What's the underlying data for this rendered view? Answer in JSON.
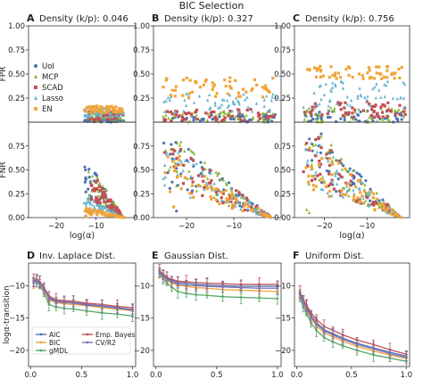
{
  "figure": {
    "title": "BIC Selection",
    "colors": {
      "UoI": "#4c72b0",
      "MCP": "#8bb739",
      "SCAD": "#c44e52",
      "Lasso": "#64b5cd",
      "EN": "#f0a53a",
      "AIC": "#4c72b0",
      "BIC": "#f0a53a",
      "gMDL": "#55a868",
      "Emp. Bayes": "#c44e52",
      "CV/R2": "#8172b2"
    }
  },
  "chart_data": [
    {
      "id": "A-FPR",
      "panel_letter": "A",
      "title": "Density (k/p): 0.046",
      "type": "scatter",
      "ylabel": "FPR",
      "xlabel": "",
      "xlim": [
        -27,
        0
      ],
      "ylim": [
        0,
        1
      ],
      "xticks": [],
      "yticks": [
        0.25,
        0.5,
        0.75,
        1.0
      ],
      "ytick_labels": [
        "0.25",
        "0.50",
        "0.75",
        "1.00"
      ],
      "legend": {
        "placement": "left",
        "entries": [
          "UoI",
          "MCP",
          "SCAD",
          "Lasso",
          "EN"
        ]
      },
      "series": [
        {
          "name": "UoI",
          "x_range": [
            -13,
            -3
          ],
          "y_range": [
            0.0,
            0.03
          ]
        },
        {
          "name": "MCP",
          "x_range": [
            -12,
            -3
          ],
          "y_range": [
            0.01,
            0.1
          ]
        },
        {
          "name": "SCAD",
          "x_range": [
            -12,
            -3
          ],
          "y_range": [
            0.02,
            0.11
          ]
        },
        {
          "name": "Lasso",
          "x_range": [
            -13,
            -3
          ],
          "y_range": [
            0.05,
            0.15
          ]
        },
        {
          "name": "EN",
          "x_range": [
            -13,
            -3
          ],
          "y_range": [
            0.1,
            0.17
          ]
        }
      ]
    },
    {
      "id": "B-FPR",
      "panel_letter": "B",
      "title": "Density (k/p): 0.327",
      "type": "scatter",
      "ylabel": "",
      "xlabel": "",
      "xlim": [
        -27,
        0
      ],
      "ylim": [
        0,
        1
      ],
      "xticks": [],
      "yticks": [
        0.25,
        0.5,
        0.75,
        1.0
      ],
      "ytick_labels": [
        "0.25",
        "0.50",
        "0.75",
        "1.00"
      ],
      "series": [
        {
          "name": "UoI",
          "x_range": [
            -25,
            -1
          ],
          "y_range": [
            0.0,
            0.08
          ]
        },
        {
          "name": "MCP",
          "x_range": [
            -25,
            -1
          ],
          "y_range": [
            0.0,
            0.12
          ]
        },
        {
          "name": "SCAD",
          "x_range": [
            -25,
            -1
          ],
          "y_range": [
            0.01,
            0.14
          ]
        },
        {
          "name": "Lasso",
          "x_range": [
            -25,
            -1
          ],
          "y_range": [
            0.1,
            0.3
          ]
        },
        {
          "name": "EN",
          "x_range": [
            -25,
            -1
          ],
          "y_range": [
            0.25,
            0.47
          ]
        }
      ]
    },
    {
      "id": "C-FPR",
      "panel_letter": "C",
      "title": "Density (k/p): 0.756",
      "type": "scatter",
      "ylabel": "",
      "xlabel": "",
      "xlim": [
        -27,
        0
      ],
      "ylim": [
        0,
        1
      ],
      "xticks": [],
      "yticks": [
        0.25,
        0.5,
        0.75,
        1.0
      ],
      "ytick_labels": [
        "0.25",
        "0.50",
        "0.75",
        "1.00"
      ],
      "series": [
        {
          "name": "UoI",
          "x_range": [
            -25,
            -1
          ],
          "y_range": [
            0.0,
            0.12
          ]
        },
        {
          "name": "MCP",
          "x_range": [
            -25,
            -1
          ],
          "y_range": [
            0.0,
            0.15
          ]
        },
        {
          "name": "SCAD",
          "x_range": [
            -25,
            -1
          ],
          "y_range": [
            0.05,
            0.22
          ]
        },
        {
          "name": "Lasso",
          "x_range": [
            -25,
            -1
          ],
          "y_range": [
            0.15,
            0.45
          ]
        },
        {
          "name": "EN",
          "x_range": [
            -25,
            -1
          ],
          "y_range": [
            0.45,
            0.58
          ]
        }
      ]
    },
    {
      "id": "A-FNR",
      "panel_letter": "",
      "title": "",
      "type": "scatter",
      "ylabel": "FNR",
      "xlabel": "log(α)",
      "xlim": [
        -27,
        0
      ],
      "ylim": [
        0,
        1
      ],
      "xticks": [
        -20,
        -10
      ],
      "xtick_labels": [
        "−20",
        "−10"
      ],
      "yticks": [
        0.0,
        0.25,
        0.5,
        0.75
      ],
      "ytick_labels": [
        "0.00",
        "0.25",
        "0.50",
        "0.75"
      ],
      "series": [
        {
          "name": "UoI",
          "x_range": [
            -13,
            -3
          ],
          "y_range": [
            0.0,
            0.55
          ]
        },
        {
          "name": "MCP",
          "x_range": [
            -12,
            -3
          ],
          "y_range": [
            0.0,
            0.5
          ]
        },
        {
          "name": "SCAD",
          "x_range": [
            -12,
            -3
          ],
          "y_range": [
            0.0,
            0.45
          ]
        },
        {
          "name": "Lasso",
          "x_range": [
            -13,
            -3
          ],
          "y_range": [
            0.0,
            0.2
          ]
        },
        {
          "name": "EN",
          "x_range": [
            -13,
            -3
          ],
          "y_range": [
            0.0,
            0.1
          ]
        }
      ]
    },
    {
      "id": "B-FNR",
      "panel_letter": "",
      "title": "",
      "type": "scatter",
      "ylabel": "",
      "xlabel": "",
      "xlim": [
        -27,
        0
      ],
      "ylim": [
        0,
        1
      ],
      "xticks": [
        -20,
        -10
      ],
      "xtick_labels": [
        "−20",
        "−10"
      ],
      "yticks": [
        0.0,
        0.25,
        0.5,
        0.75
      ],
      "ytick_labels": [
        "0.00",
        "0.25",
        "0.50",
        "0.75"
      ],
      "series": [
        {
          "name": "UoI",
          "x_range": [
            -25,
            -2
          ],
          "y_range": [
            0.0,
            0.8
          ]
        },
        {
          "name": "MCP",
          "x_range": [
            -25,
            -2
          ],
          "y_range": [
            0.0,
            0.8
          ]
        },
        {
          "name": "SCAD",
          "x_range": [
            -25,
            -2
          ],
          "y_range": [
            0.0,
            0.75
          ]
        },
        {
          "name": "Lasso",
          "x_range": [
            -25,
            -2
          ],
          "y_range": [
            0.0,
            0.7
          ]
        },
        {
          "name": "EN",
          "x_range": [
            -25,
            -2
          ],
          "y_range": [
            0.0,
            0.65
          ]
        }
      ]
    },
    {
      "id": "C-FNR",
      "panel_letter": "",
      "title": "",
      "type": "scatter",
      "ylabel": "",
      "xlabel": "log(α)",
      "xlim": [
        -27,
        0
      ],
      "ylim": [
        0,
        1
      ],
      "xticks": [
        -20,
        -10
      ],
      "xtick_labels": [
        "−20",
        "−10"
      ],
      "yticks": [
        0.0,
        0.25,
        0.5,
        0.75
      ],
      "ytick_labels": [
        "0.00",
        "0.25",
        "0.50",
        "0.75"
      ],
      "series": [
        {
          "name": "UoI",
          "x_range": [
            -25,
            -2
          ],
          "y_range": [
            0.0,
            0.9
          ]
        },
        {
          "name": "MCP",
          "x_range": [
            -25,
            -2
          ],
          "y_range": [
            0.0,
            0.9
          ]
        },
        {
          "name": "SCAD",
          "x_range": [
            -25,
            -2
          ],
          "y_range": [
            0.0,
            0.85
          ]
        },
        {
          "name": "Lasso",
          "x_range": [
            -25,
            -2
          ],
          "y_range": [
            0.0,
            0.8
          ]
        },
        {
          "name": "EN",
          "x_range": [
            -25,
            -2
          ],
          "y_range": [
            0.0,
            0.75
          ]
        }
      ]
    },
    {
      "id": "D",
      "panel_letter": "D",
      "title": "Inv. Laplace Dist.",
      "type": "line",
      "ylabel": "logα-transition",
      "xlabel": "Model Density (k/p)",
      "xlim": [
        -0.02,
        1.03
      ],
      "ylim": [
        -22.5,
        -6.5
      ],
      "xticks": [
        0,
        0.5,
        1.0
      ],
      "xtick_labels": [
        "0.0",
        "0.5",
        "1.0"
      ],
      "yticks": [
        -20,
        -15,
        -10
      ],
      "ytick_labels": [
        "−20",
        "−15",
        "−10"
      ],
      "legend": {
        "placement": "bottom-left",
        "entries": [
          "AIC",
          "BIC",
          "gMDL",
          "Emp. Bayes",
          "CV/R2"
        ]
      },
      "x": [
        0.03,
        0.06,
        0.09,
        0.13,
        0.18,
        0.25,
        0.33,
        0.42,
        0.55,
        0.7,
        0.85,
        1.0
      ],
      "series": [
        {
          "name": "AIC",
          "values": [
            -9.3,
            -9.1,
            -9.5,
            -10.3,
            -11.8,
            -12.4,
            -12.5,
            -12.6,
            -12.9,
            -13.1,
            -13.4,
            -13.7
          ]
        },
        {
          "name": "BIC",
          "values": [
            -9.6,
            -9.2,
            -9.7,
            -10.5,
            -12.2,
            -12.6,
            -12.8,
            -12.9,
            -13.1,
            -13.4,
            -13.6,
            -13.9
          ]
        },
        {
          "name": "gMDL",
          "values": [
            -9.5,
            -9.3,
            -9.9,
            -11.0,
            -12.9,
            -13.3,
            -13.5,
            -13.6,
            -13.9,
            -14.2,
            -14.4,
            -14.7
          ]
        },
        {
          "name": "Emp. Bayes",
          "values": [
            -9.2,
            -9.0,
            -9.4,
            -10.2,
            -11.6,
            -12.2,
            -12.3,
            -12.4,
            -12.7,
            -12.9,
            -13.2,
            -13.4
          ]
        },
        {
          "name": "CV/R2",
          "values": [
            -9.4,
            -9.2,
            -9.6,
            -10.4,
            -12.0,
            -12.5,
            -12.6,
            -12.7,
            -13.0,
            -13.2,
            -13.5,
            -13.8
          ]
        }
      ]
    },
    {
      "id": "E",
      "panel_letter": "E",
      "title": "Gaussian Dist.",
      "type": "line",
      "ylabel": "",
      "xlabel": "Model Density (k/p)",
      "xlim": [
        -0.02,
        1.03
      ],
      "ylim": [
        -22.5,
        -6.5
      ],
      "xticks": [
        0,
        0.5,
        1.0
      ],
      "xtick_labels": [
        "0.0",
        "0.5",
        "1.0"
      ],
      "yticks": [
        -20,
        -15,
        -10
      ],
      "ytick_labels": [
        "−20",
        "−15",
        "−10"
      ],
      "x": [
        0.03,
        0.06,
        0.09,
        0.13,
        0.18,
        0.25,
        0.33,
        0.42,
        0.55,
        0.7,
        0.85,
        1.0
      ],
      "series": [
        {
          "name": "AIC",
          "values": [
            -7.8,
            -8.4,
            -8.9,
            -9.2,
            -9.5,
            -9.6,
            -9.8,
            -9.9,
            -10.0,
            -10.1,
            -10.1,
            -10.1
          ]
        },
        {
          "name": "BIC",
          "values": [
            -8.0,
            -8.6,
            -9.2,
            -9.6,
            -9.9,
            -10.1,
            -10.3,
            -10.4,
            -10.6,
            -10.7,
            -10.8,
            -10.9
          ]
        },
        {
          "name": "gMDL",
          "values": [
            -8.1,
            -8.9,
            -9.6,
            -10.2,
            -10.9,
            -11.2,
            -11.4,
            -11.5,
            -11.7,
            -11.8,
            -11.9,
            -12.0
          ]
        },
        {
          "name": "Emp. Bayes",
          "values": [
            -7.7,
            -8.2,
            -8.7,
            -9.0,
            -9.3,
            -9.4,
            -9.5,
            -9.6,
            -9.7,
            -9.8,
            -9.8,
            -9.8
          ]
        },
        {
          "name": "CV/R2",
          "values": [
            -7.9,
            -8.5,
            -9.0,
            -9.4,
            -9.7,
            -9.9,
            -10.0,
            -10.1,
            -10.2,
            -10.3,
            -10.4,
            -10.4
          ]
        }
      ]
    },
    {
      "id": "F",
      "panel_letter": "F",
      "title": "Uniform Dist.",
      "type": "line",
      "ylabel": "",
      "xlabel": "Model Density (k/p)",
      "xlim": [
        -0.02,
        1.03
      ],
      "ylim": [
        -22.5,
        -6.5
      ],
      "xticks": [
        0,
        0.5,
        1.0
      ],
      "xtick_labels": [
        "0.0",
        "0.5",
        "1.0"
      ],
      "yticks": [
        -20,
        -15,
        -10
      ],
      "ytick_labels": [
        "−20",
        "−15",
        "−10"
      ],
      "x": [
        0.03,
        0.06,
        0.09,
        0.13,
        0.18,
        0.25,
        0.33,
        0.42,
        0.55,
        0.7,
        0.85,
        1.0
      ],
      "series": [
        {
          "name": "AIC",
          "values": [
            -11.2,
            -12.4,
            -13.3,
            -14.6,
            -15.7,
            -16.8,
            -17.4,
            -18.1,
            -18.9,
            -19.6,
            -20.3,
            -20.9
          ]
        },
        {
          "name": "BIC",
          "values": [
            -11.6,
            -12.8,
            -13.8,
            -15.1,
            -16.2,
            -17.3,
            -17.9,
            -18.6,
            -19.4,
            -20.1,
            -20.7,
            -21.3
          ]
        },
        {
          "name": "gMDL",
          "values": [
            -11.9,
            -13.2,
            -14.3,
            -15.7,
            -16.9,
            -18.0,
            -18.7,
            -19.3,
            -20.0,
            -20.7,
            -21.2,
            -21.7
          ]
        },
        {
          "name": "Emp. Bayes",
          "values": [
            -11.0,
            -12.1,
            -13.0,
            -14.2,
            -15.2,
            -16.3,
            -16.9,
            -17.6,
            -18.4,
            -19.1,
            -19.9,
            -20.6
          ]
        },
        {
          "name": "CV/R2",
          "values": [
            -11.3,
            -12.5,
            -13.5,
            -14.8,
            -15.9,
            -17.0,
            -17.6,
            -18.3,
            -19.1,
            -19.8,
            -20.5,
            -21.1
          ]
        }
      ]
    }
  ]
}
